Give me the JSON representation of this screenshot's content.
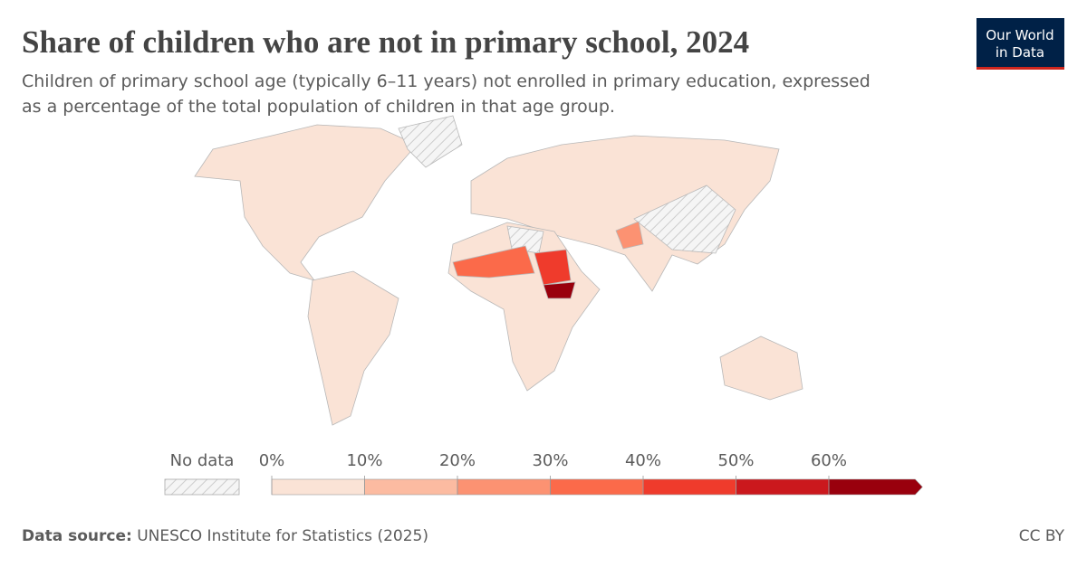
{
  "header": {
    "title": "Share of children who are not in primary school, 2024",
    "subtitle_lines": [
      "Children of primary school age (typically 6–11 years) not enrolled in primary education, expressed",
      "as a percentage of the total population of children in that age group."
    ]
  },
  "logo": {
    "lines": [
      "Our World",
      "in Data"
    ]
  },
  "legend": {
    "no_data_label": "No data",
    "ticks": [
      {
        "value": 0,
        "label": "0%"
      },
      {
        "value": 10,
        "label": "10%"
      },
      {
        "value": 20,
        "label": "20%"
      },
      {
        "value": 30,
        "label": "30%"
      },
      {
        "value": 40,
        "label": "40%"
      },
      {
        "value": 50,
        "label": "50%"
      },
      {
        "value": 60,
        "label": "60%"
      }
    ],
    "colors": [
      "#fae3d6",
      "#fcbba1",
      "#fc9272",
      "#fb6a4a",
      "#ef3b2c",
      "#cb181d",
      "#99000d"
    ]
  },
  "footer": {
    "source_label": "Data source:",
    "source": "UNESCO Institute for Statistics (2025)",
    "license": "CC BY"
  }
}
